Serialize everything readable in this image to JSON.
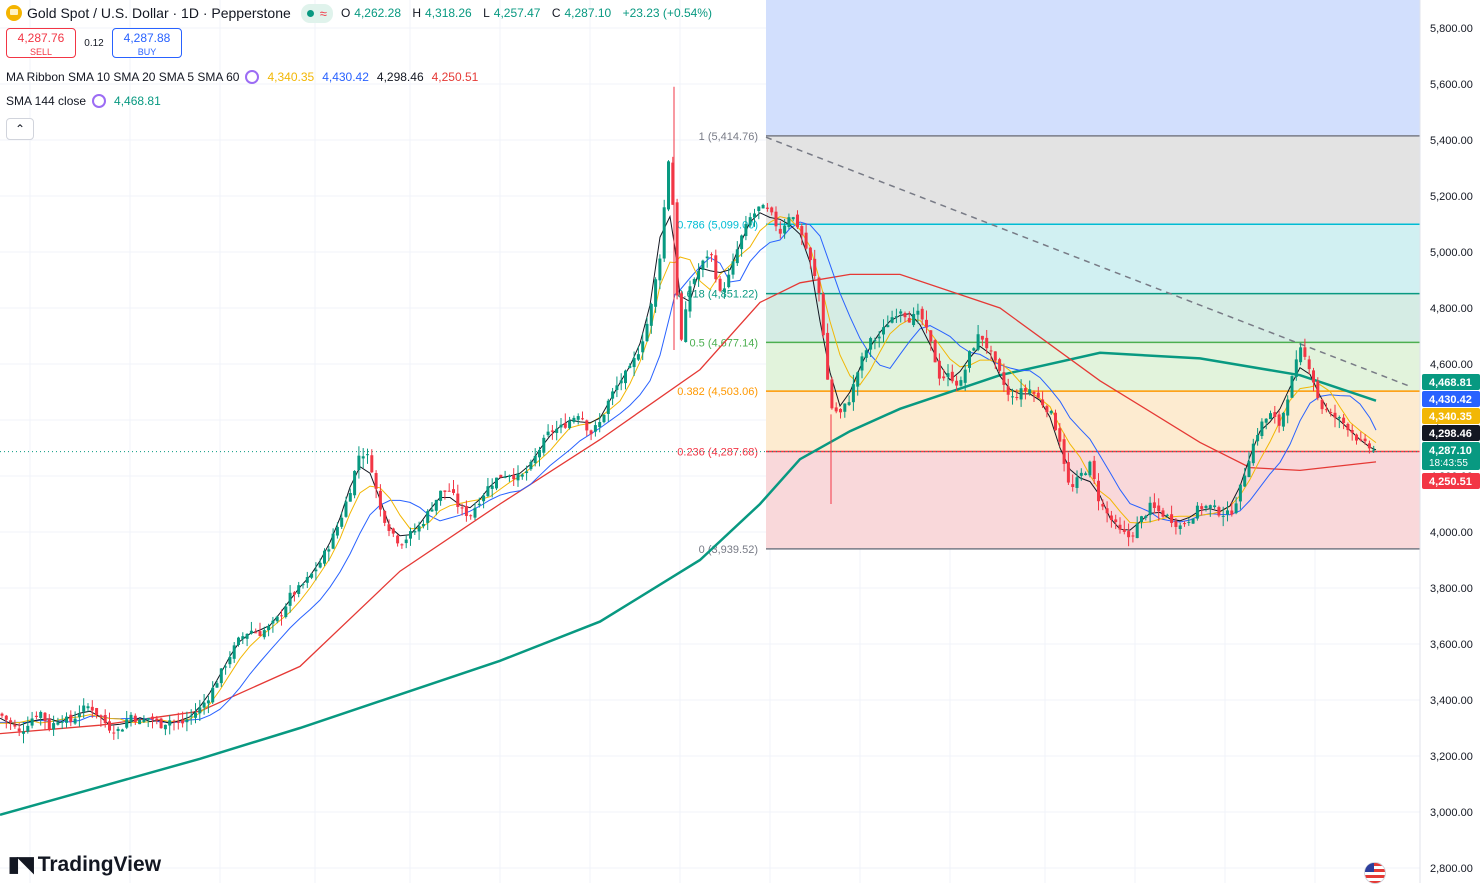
{
  "header": {
    "symbol": "Gold Spot / U.S. Dollar · 1D · Pepperstone",
    "open_label": "O",
    "open": "4,262.28",
    "high_label": "H",
    "high": "4,318.26",
    "low_label": "L",
    "low": "4,257.47",
    "close_label": "C",
    "close": "4,287.10",
    "change": "+23.23 (+0.54%)"
  },
  "trade": {
    "sell_price": "4,287.76",
    "sell_label": "SELL",
    "spread": "0.12",
    "buy_price": "4,287.88",
    "buy_label": "BUY"
  },
  "indicators": {
    "ribbon_name": "MA Ribbon SMA 10 SMA 20 SMA 5 SMA 60",
    "ribbon_values": [
      "4,340.35",
      "4,430.42",
      "4,298.46",
      "4,250.51"
    ],
    "sma_name": "SMA 144 close",
    "sma_value": "4,468.81"
  },
  "collapse_icon": "chevron-up-icon",
  "brand": "TradingView",
  "colors": {
    "up": "#089981",
    "down": "#f23645",
    "sma10": "#131722",
    "sma20": "#f2b705",
    "sma5": "#2962ff",
    "sma60": "#e53935",
    "sma144": "#089981"
  },
  "chart_data": {
    "type": "candlestick",
    "ylim": [
      2750,
      5900
    ],
    "y_ticks": [
      "5,800.00",
      "5,600.00",
      "5,400.00",
      "5,200.00",
      "5,000.00",
      "4,800.00",
      "4,600.00",
      "4,400.00",
      "4,200.00",
      "4,000.00",
      "3,800.00",
      "3,600.00",
      "3,400.00",
      "3,200.00",
      "3,000.00",
      "2,800.00"
    ],
    "y_tick_values": [
      5800,
      5600,
      5400,
      5200,
      5000,
      4800,
      4600,
      4400,
      4200,
      4000,
      3800,
      3600,
      3400,
      3200,
      3000,
      2800
    ],
    "price_tags": [
      {
        "label": "4,468.81",
        "value": 4468.81,
        "color": "#089981"
      },
      {
        "label": "4,430.42",
        "value": 4430.42,
        "color": "#2962ff"
      },
      {
        "label": "4,340.35",
        "value": 4340.35,
        "color": "#f2b705"
      },
      {
        "label": "4,298.46",
        "value": 4298.46,
        "color": "#131722"
      },
      {
        "label": "4,287.10",
        "sub": "18:43:55",
        "value": 4287.1,
        "color": "#089981"
      },
      {
        "label": "4,250.51",
        "value": 4250.51,
        "color": "#f23645"
      }
    ],
    "fib_levels": [
      {
        "label": "1 (5,414.76)",
        "value": 5414.76,
        "color": "#787b86"
      },
      {
        "label": "0.786 (5,099.00)",
        "value": 5099.0,
        "color": "#00bcd4"
      },
      {
        "label": "0.618 (4,851.22)",
        "value": 4851.22,
        "color": "#089981"
      },
      {
        "label": "0.5 (4,677.14)",
        "value": 4677.14,
        "color": "#4caf50"
      },
      {
        "label": "0.382 (4,503.06)",
        "value": 4503.06,
        "color": "#ff9800"
      },
      {
        "label": "0.236 (4,287.68)",
        "value": 4287.68,
        "color": "#f23645"
      },
      {
        "label": "0 (3,939.52)",
        "value": 3939.52,
        "color": "#787b86"
      }
    ],
    "fib_zones": [
      {
        "from": 5414.76,
        "to": 5900,
        "color": "#d2dffd"
      },
      {
        "from": 5099.0,
        "to": 5414.76,
        "color": "#e3e3e3"
      },
      {
        "from": 4851.22,
        "to": 5099.0,
        "color": "#d1f0f2"
      },
      {
        "from": 4677.14,
        "to": 4851.22,
        "color": "#d5ece4"
      },
      {
        "from": 4503.06,
        "to": 4677.14,
        "color": "#e2f3dc"
      },
      {
        "from": 4287.68,
        "to": 4503.06,
        "color": "#fdebd0"
      },
      {
        "from": 3939.52,
        "to": 4287.68,
        "color": "#f9d8da"
      }
    ],
    "trend_line": {
      "from": [
        0,
        5410
      ],
      "to": [
        1,
        4520
      ]
    },
    "price_path": [
      [
        0,
        3350
      ],
      [
        10,
        3320
      ],
      [
        20,
        3280
      ],
      [
        30,
        3330
      ],
      [
        40,
        3360
      ],
      [
        50,
        3300
      ],
      [
        60,
        3340
      ],
      [
        70,
        3320
      ],
      [
        80,
        3360
      ],
      [
        90,
        3380
      ],
      [
        100,
        3340
      ],
      [
        110,
        3300
      ],
      [
        120,
        3290
      ],
      [
        130,
        3350
      ],
      [
        140,
        3320
      ],
      [
        150,
        3340
      ],
      [
        160,
        3310
      ],
      [
        170,
        3330
      ],
      [
        180,
        3310
      ],
      [
        190,
        3340
      ],
      [
        200,
        3370
      ],
      [
        210,
        3420
      ],
      [
        220,
        3490
      ],
      [
        230,
        3560
      ],
      [
        240,
        3620
      ],
      [
        250,
        3650
      ],
      [
        260,
        3640
      ],
      [
        270,
        3660
      ],
      [
        280,
        3700
      ],
      [
        290,
        3770
      ],
      [
        300,
        3800
      ],
      [
        310,
        3840
      ],
      [
        320,
        3890
      ],
      [
        330,
        3960
      ],
      [
        340,
        4040
      ],
      [
        350,
        4150
      ],
      [
        360,
        4290
      ],
      [
        370,
        4260
      ],
      [
        380,
        4080
      ],
      [
        390,
        4010
      ],
      [
        400,
        3960
      ],
      [
        410,
        3990
      ],
      [
        420,
        4020
      ],
      [
        430,
        4080
      ],
      [
        440,
        4140
      ],
      [
        450,
        4150
      ],
      [
        460,
        4080
      ],
      [
        470,
        4060
      ],
      [
        480,
        4120
      ],
      [
        490,
        4170
      ],
      [
        500,
        4200
      ],
      [
        510,
        4210
      ],
      [
        520,
        4190
      ],
      [
        530,
        4230
      ],
      [
        540,
        4300
      ],
      [
        550,
        4360
      ],
      [
        560,
        4370
      ],
      [
        570,
        4400
      ],
      [
        580,
        4430
      ],
      [
        590,
        4350
      ],
      [
        600,
        4390
      ],
      [
        610,
        4480
      ],
      [
        620,
        4540
      ],
      [
        630,
        4580
      ],
      [
        640,
        4660
      ],
      [
        650,
        4780
      ],
      [
        660,
        4990
      ],
      [
        670,
        5390
      ],
      [
        675,
        5000
      ],
      [
        680,
        4650
      ],
      [
        690,
        4880
      ],
      [
        700,
        4940
      ],
      [
        710,
        5010
      ],
      [
        720,
        4850
      ],
      [
        730,
        4920
      ],
      [
        740,
        5040
      ],
      [
        750,
        5120
      ],
      [
        760,
        5160
      ],
      [
        770,
        5140
      ],
      [
        780,
        5070
      ],
      [
        790,
        5140
      ],
      [
        800,
        5080
      ],
      [
        810,
        4970
      ],
      [
        820,
        4840
      ],
      [
        830,
        4450
      ],
      [
        840,
        4420
      ],
      [
        850,
        4480
      ],
      [
        860,
        4600
      ],
      [
        870,
        4680
      ],
      [
        880,
        4700
      ],
      [
        890,
        4760
      ],
      [
        900,
        4800
      ],
      [
        910,
        4760
      ],
      [
        920,
        4780
      ],
      [
        930,
        4680
      ],
      [
        940,
        4550
      ],
      [
        950,
        4560
      ],
      [
        960,
        4520
      ],
      [
        970,
        4640
      ],
      [
        980,
        4710
      ],
      [
        990,
        4640
      ],
      [
        1000,
        4560
      ],
      [
        1010,
        4470
      ],
      [
        1020,
        4500
      ],
      [
        1030,
        4510
      ],
      [
        1040,
        4470
      ],
      [
        1050,
        4430
      ],
      [
        1060,
        4330
      ],
      [
        1070,
        4140
      ],
      [
        1080,
        4200
      ],
      [
        1090,
        4240
      ],
      [
        1100,
        4100
      ],
      [
        1110,
        4050
      ],
      [
        1120,
        4000
      ],
      [
        1130,
        3980
      ],
      [
        1140,
        4040
      ],
      [
        1150,
        4090
      ],
      [
        1160,
        4070
      ],
      [
        1170,
        4050
      ],
      [
        1180,
        4020
      ],
      [
        1190,
        4050
      ],
      [
        1200,
        4090
      ],
      [
        1210,
        4090
      ],
      [
        1220,
        4070
      ],
      [
        1230,
        4060
      ],
      [
        1240,
        4150
      ],
      [
        1250,
        4280
      ],
      [
        1260,
        4380
      ],
      [
        1270,
        4420
      ],
      [
        1280,
        4380
      ],
      [
        1290,
        4520
      ],
      [
        1300,
        4650
      ],
      [
        1310,
        4590
      ],
      [
        1320,
        4450
      ],
      [
        1330,
        4420
      ],
      [
        1340,
        4400
      ],
      [
        1350,
        4370
      ],
      [
        1360,
        4320
      ],
      [
        1370,
        4300
      ],
      [
        1376,
        4287
      ]
    ],
    "sma144_path": [
      [
        0,
        2990
      ],
      [
        100,
        3090
      ],
      [
        200,
        3190
      ],
      [
        300,
        3300
      ],
      [
        400,
        3420
      ],
      [
        500,
        3540
      ],
      [
        600,
        3680
      ],
      [
        700,
        3900
      ],
      [
        760,
        4100
      ],
      [
        800,
        4260
      ],
      [
        850,
        4360
      ],
      [
        900,
        4440
      ],
      [
        1000,
        4560
      ],
      [
        1100,
        4640
      ],
      [
        1200,
        4620
      ],
      [
        1300,
        4560
      ],
      [
        1376,
        4468.81
      ]
    ],
    "sma60_path": [
      [
        0,
        3280
      ],
      [
        100,
        3310
      ],
      [
        200,
        3360
      ],
      [
        300,
        3520
      ],
      [
        400,
        3860
      ],
      [
        500,
        4100
      ],
      [
        600,
        4330
      ],
      [
        700,
        4580
      ],
      [
        760,
        4820
      ],
      [
        800,
        4890
      ],
      [
        850,
        4920
      ],
      [
        900,
        4920
      ],
      [
        1000,
        4800
      ],
      [
        1100,
        4540
      ],
      [
        1200,
        4320
      ],
      [
        1250,
        4230
      ],
      [
        1300,
        4220
      ],
      [
        1376,
        4250.51
      ]
    ]
  }
}
